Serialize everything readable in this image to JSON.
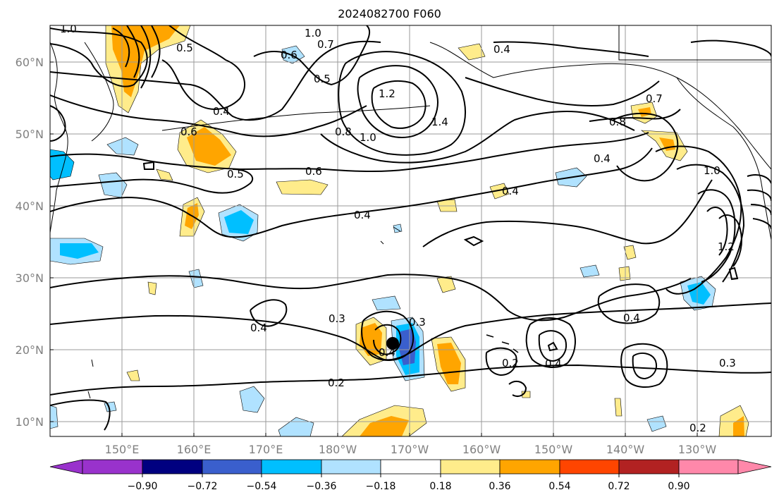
{
  "title": "2024082700 F060",
  "lat_labels": [
    "60°N",
    "50°N",
    "40°N",
    "30°N",
    "20°N",
    "10°N"
  ],
  "lon_labels": [
    "150°E",
    "160°E",
    "170°E",
    "180°W",
    "170°W",
    "160°W",
    "150°W",
    "140°W",
    "130°W"
  ],
  "contour_labels": [
    "1.0",
    "0.5",
    "0.6",
    "0.7",
    "1.0",
    "0.4",
    "0.5",
    "0.4",
    "1.2",
    "1.4",
    "1.0",
    "0.8",
    "0.7",
    "0.8",
    "0.6",
    "0.5",
    "0.6",
    "0.4",
    "0.4",
    "1.0",
    "1.2",
    "0.4",
    "0.3",
    "0.3",
    "0.4",
    "0.4",
    "0.2",
    "0.4",
    "0.4",
    "0.2",
    "0.3",
    "0.2"
  ],
  "colorbar": {
    "ticks": [
      "−0.90",
      "−0.72",
      "−0.54",
      "−0.36",
      "−0.18",
      "0.18",
      "0.36",
      "0.54",
      "0.72",
      "0.90"
    ],
    "colors": [
      "#9932cc",
      "#000080",
      "#3a5fcd",
      "#00bfff",
      "#b0e2ff",
      "#ffffff",
      "#ffec8b",
      "#ffa500",
      "#ff4500",
      "#b22222",
      "#ff88aa"
    ]
  }
}
